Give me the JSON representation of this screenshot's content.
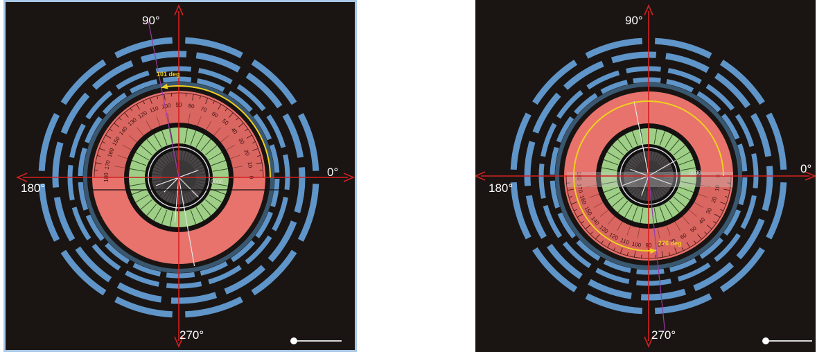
{
  "panels": [
    {
      "labels": {
        "top": "90°",
        "right": "0°",
        "left": "180°",
        "bottom": "270°",
        "angle": "101 deg",
        "status": "0000"
      },
      "protractor": {
        "orientation": "upper",
        "ticks": [
          "180",
          "170",
          "160",
          "150",
          "140",
          "130",
          "120",
          "110",
          "100",
          "90",
          "80",
          "70",
          "60",
          "50",
          "40",
          "30",
          "20",
          "10",
          "0"
        ]
      },
      "angle_deg": 101,
      "slider_value": 0
    },
    {
      "labels": {
        "top": "90°",
        "right": "0°",
        "left": "180°",
        "bottom": "270°",
        "angle": "276 deg",
        "status": "0000"
      },
      "protractor": {
        "orientation": "lower",
        "ticks": [
          "180",
          "170",
          "160",
          "150",
          "140",
          "130",
          "120",
          "110",
          "100",
          "90",
          "80",
          "70",
          "60",
          "50",
          "40",
          "30",
          "20",
          "10",
          "0"
        ]
      },
      "angle_deg": 276,
      "slider_value": 0
    }
  ],
  "colors": {
    "background": "#1a1513",
    "detector_blue": "#5f95c8",
    "red_ring": "#e8726c",
    "green_ring": "#9fcf86",
    "core": "#4a4648",
    "axis": "#d42020",
    "angle_arc": "#f0d020",
    "frame": "#a8c8e6"
  }
}
